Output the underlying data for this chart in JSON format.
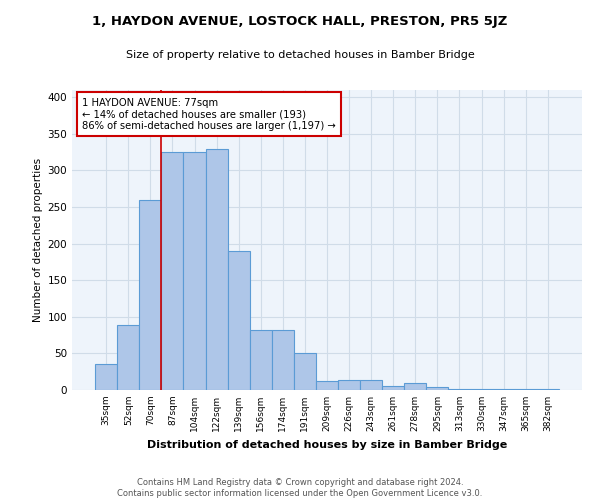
{
  "title": "1, HAYDON AVENUE, LOSTOCK HALL, PRESTON, PR5 5JZ",
  "subtitle": "Size of property relative to detached houses in Bamber Bridge",
  "xlabel": "Distribution of detached houses by size in Bamber Bridge",
  "ylabel": "Number of detached properties",
  "bar_labels": [
    "35sqm",
    "52sqm",
    "70sqm",
    "87sqm",
    "104sqm",
    "122sqm",
    "139sqm",
    "156sqm",
    "174sqm",
    "191sqm",
    "209sqm",
    "226sqm",
    "243sqm",
    "261sqm",
    "278sqm",
    "295sqm",
    "313sqm",
    "330sqm",
    "347sqm",
    "365sqm",
    "382sqm"
  ],
  "bar_values": [
    35,
    89,
    260,
    325,
    325,
    330,
    190,
    82,
    82,
    50,
    12,
    14,
    14,
    6,
    9,
    4,
    2,
    1,
    1,
    1,
    2
  ],
  "bar_color": "#aec6e8",
  "bar_edge_color": "#5b9bd5",
  "annotation_text_lines": [
    "1 HAYDON AVENUE: 77sqm",
    "← 14% of detached houses are smaller (193)",
    "86% of semi-detached houses are larger (1,197) →"
  ],
  "annotation_box_color": "#ffffff",
  "annotation_border_color": "#cc0000",
  "vline_color": "#cc0000",
  "vline_x": 2.5,
  "ylim": [
    0,
    410
  ],
  "yticks": [
    0,
    50,
    100,
    150,
    200,
    250,
    300,
    350,
    400
  ],
  "grid_color": "#d0dce8",
  "background_color": "#eef4fb",
  "footer": "Contains HM Land Registry data © Crown copyright and database right 2024.\nContains public sector information licensed under the Open Government Licence v3.0."
}
